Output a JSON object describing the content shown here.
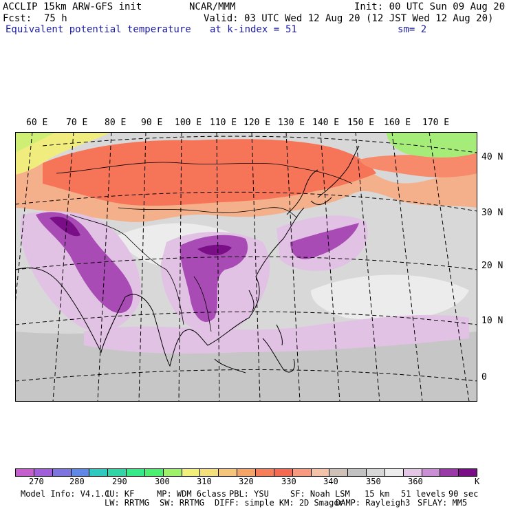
{
  "header": {
    "model": "ACCLIP 15km ARW-GFS init",
    "org": "NCAR/MMM",
    "init": "Init: 00 UTC Sun 09 Aug 20",
    "fcst_label": "Fcst:",
    "fcst_value": "75 h",
    "valid": "Valid: 03 UTC Wed 12 Aug 20 (12 JST Wed 12 Aug 20)",
    "field": "Equivalent potential temperature",
    "level": "at k-index =",
    "level_value": "51",
    "smooth": "sm= 2"
  },
  "map": {
    "lon_labels": [
      "60 E",
      "70 E",
      "80 E",
      "90 E",
      "100 E",
      "110 E",
      "120 E",
      "130 E",
      "140 E",
      "150 E",
      "160 E",
      "170 E"
    ],
    "lat_labels": [
      "40 N",
      "30 N",
      "20 N",
      "10 N",
      "0"
    ]
  },
  "legend": {
    "colors": [
      "#c45fcd",
      "#a05fd8",
      "#7d74e0",
      "#5f87e6",
      "#2fc9c0",
      "#32d6a6",
      "#36e989",
      "#4cef70",
      "#9ff06a",
      "#f1f07a",
      "#f3df7c",
      "#f5c57c",
      "#f5a468",
      "#f67e58",
      "#f76a52",
      "#f79a80",
      "#f3c2a8",
      "#cfc0b8",
      "#c2c2c2",
      "#d7d7d7",
      "#ececec",
      "#e4c6e6",
      "#c98ed4",
      "#9a3aa8",
      "#7a0e86"
    ],
    "labels": [
      "270",
      "280",
      "290",
      "300",
      "310",
      "320",
      "330",
      "340",
      "350",
      "360"
    ],
    "unit": "K"
  },
  "footer": {
    "line1": {
      "model_info": "Model Info: V4.1.1",
      "cu": "CU: KF",
      "mp": "MP: WDM 6class",
      "pbl": "PBL: YSU",
      "sf": "SF: Noah LSM",
      "res": "15 km",
      "levels": "51 levels",
      "dt": "90 sec"
    },
    "line2": {
      "lw": "LW: RRTMG",
      "sw": "SW: RRTMG",
      "diff": "DIFF: simple KM: 2D Smagor",
      "damp": "DAMP: Rayleigh3",
      "sflay": "SFLAY: MM5"
    }
  }
}
